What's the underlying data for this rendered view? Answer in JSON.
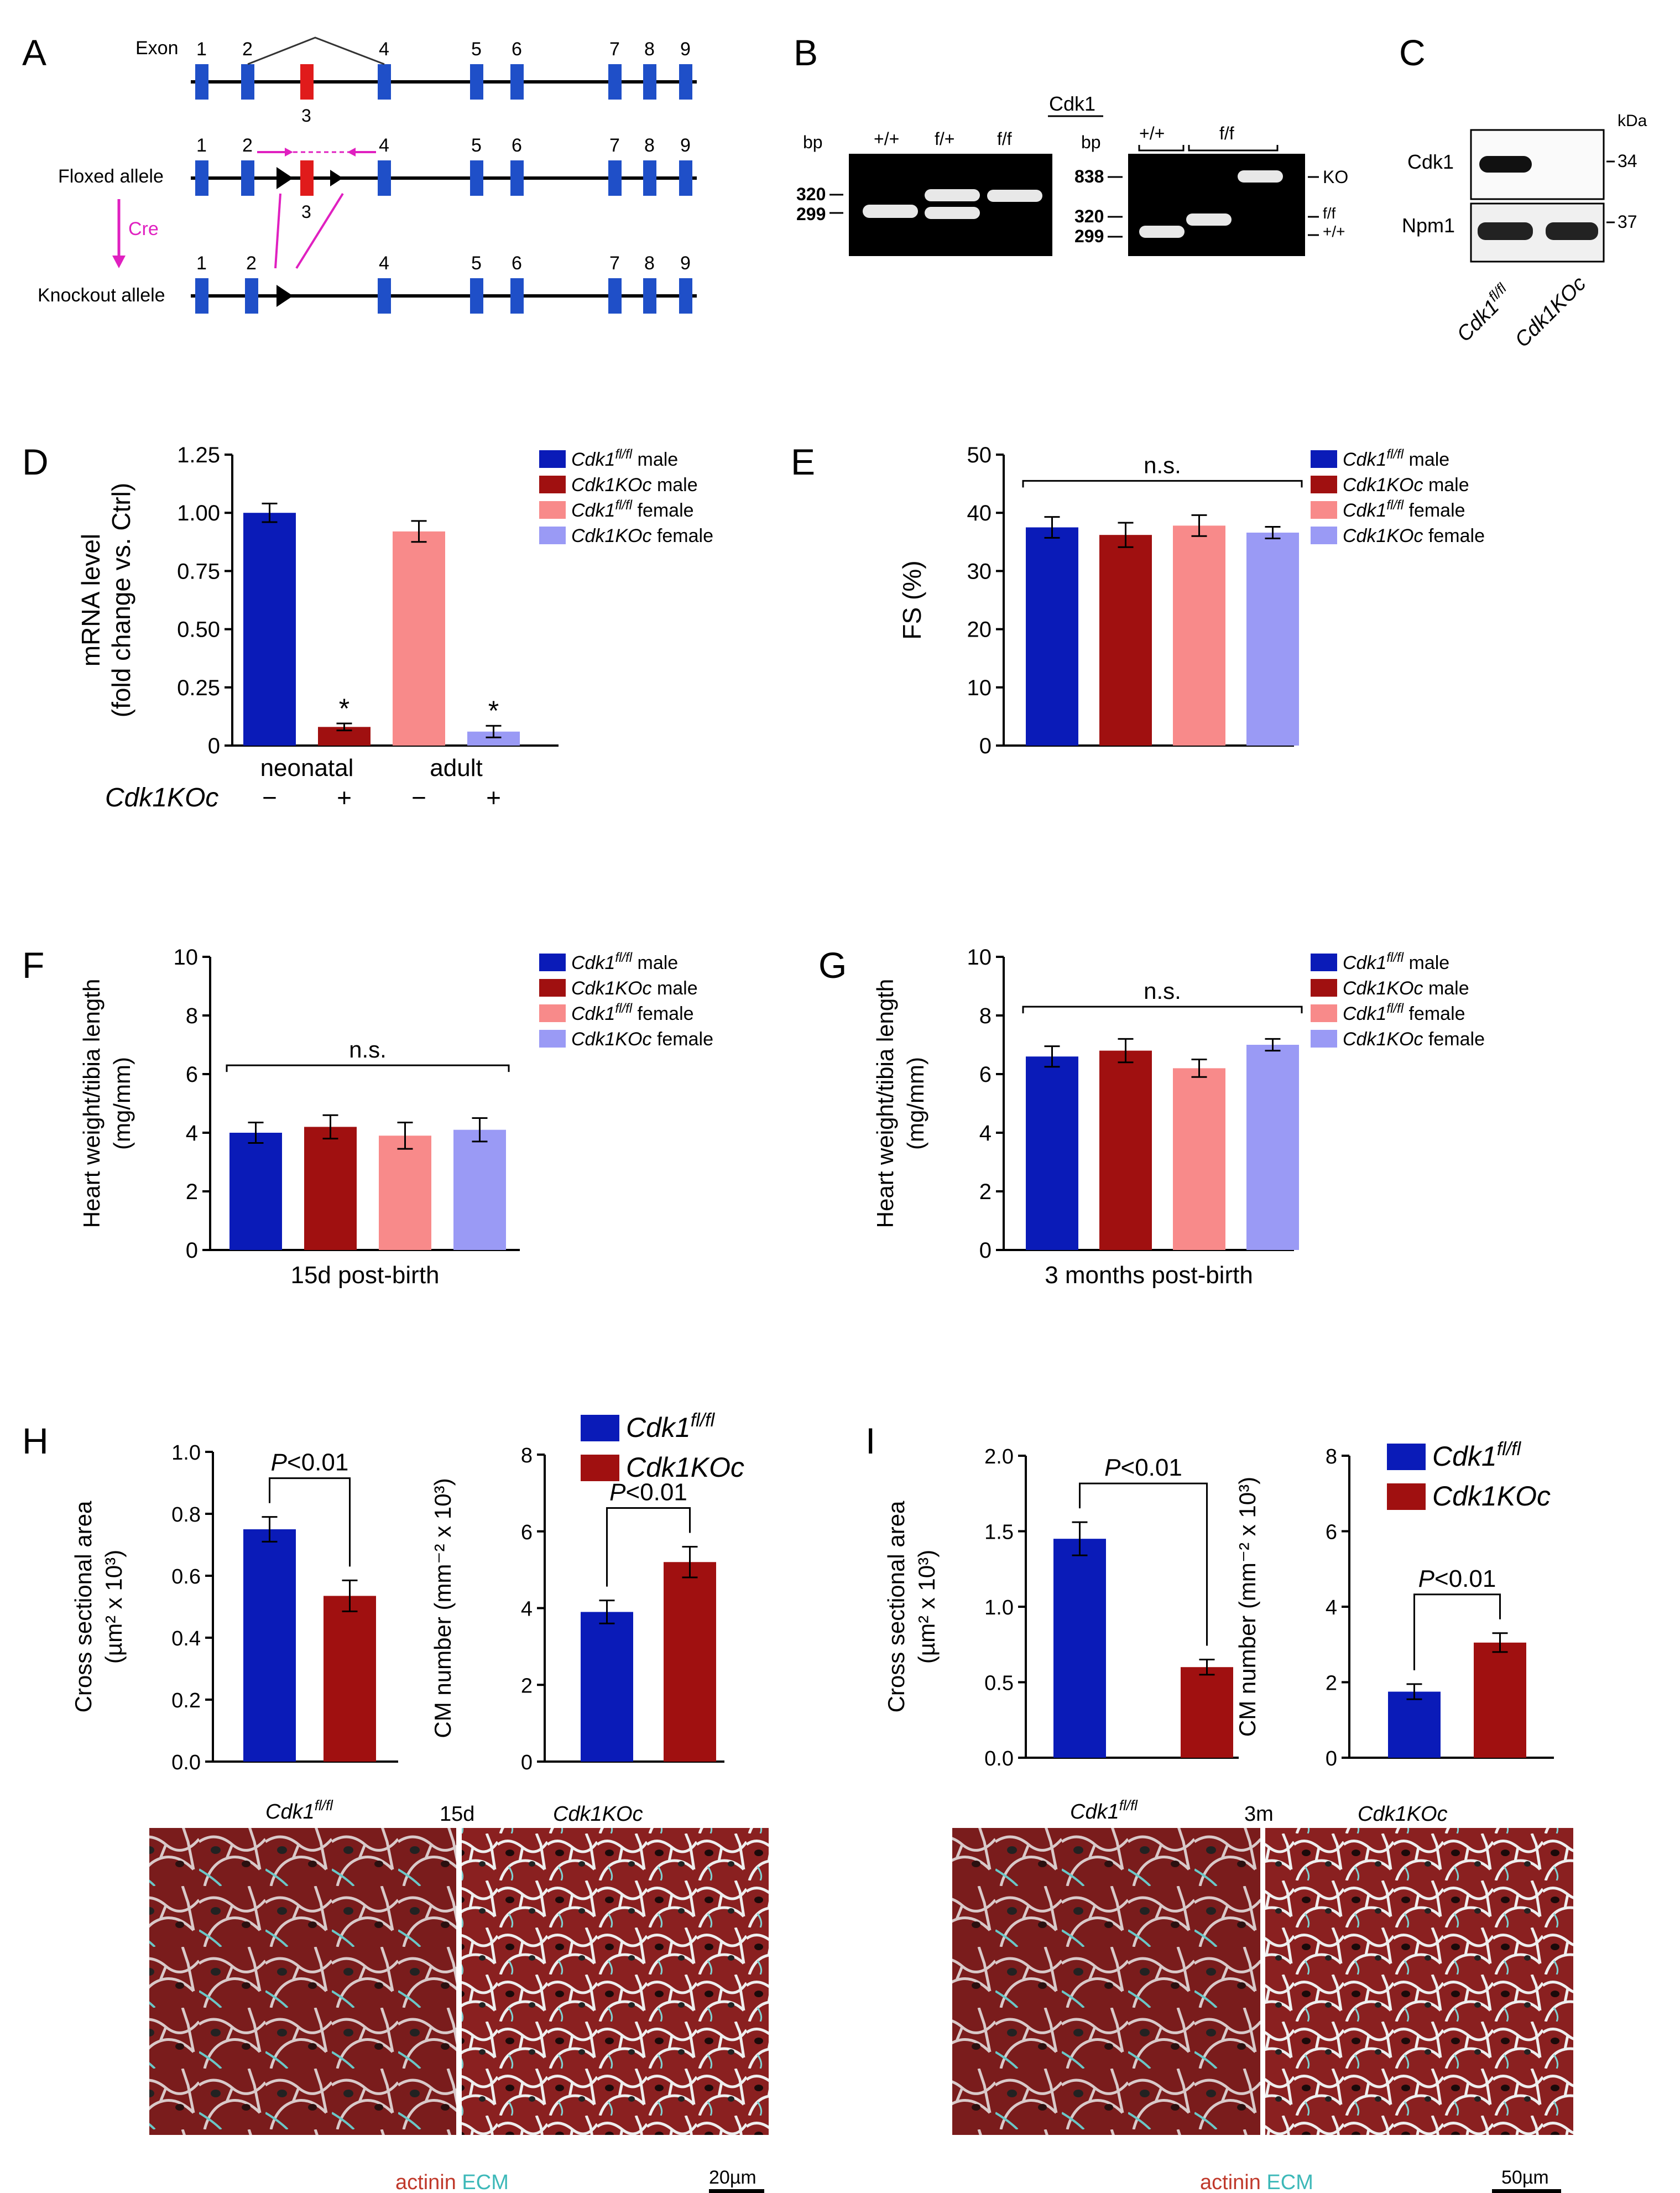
{
  "colors": {
    "wt_male": "#0a1bb8",
    "ko_male": "#a01010",
    "wt_female": "#f88a8a",
    "ko_female": "#9a9af5",
    "exon": "#1f4fc8",
    "exon3": "#e01b1b",
    "primer": "#e020c0",
    "actinin": "#c0392b",
    "ecm": "#3cb8b8"
  },
  "panelA": {
    "letter": "A",
    "exon_label": "Exon",
    "exon_numbers": [
      "1",
      "2",
      "4",
      "5",
      "6",
      "7",
      "8",
      "9"
    ],
    "exon3": "3",
    "floxed_label": "Floxed allele",
    "ko_label": "Knockout allele",
    "cre_label": "Cre"
  },
  "panelB": {
    "letter": "B",
    "left_gel": {
      "unit": "bp",
      "lanes": [
        "+/+",
        "f/+",
        "f/f"
      ],
      "sizes": [
        "320",
        "299"
      ]
    },
    "right_gel": {
      "title": "Cdk1",
      "unit": "bp",
      "groups": [
        "+/+",
        "f/f"
      ],
      "sizes": [
        "838",
        "320",
        "299"
      ],
      "bands": [
        "KO",
        "f/f",
        "+/+"
      ]
    }
  },
  "panelC": {
    "letter": "C",
    "unit": "kDa",
    "proteins": [
      "Cdk1",
      "Npm1"
    ],
    "sizes": [
      "34",
      "37"
    ],
    "lane_base": [
      "Cdk1",
      "Cdk1KOc"
    ],
    "lane_sup": [
      "fl/fl",
      ""
    ]
  },
  "legend4": {
    "items": [
      {
        "base": "Cdk1",
        "sup": "fl/fl",
        "suffix": " male",
        "color": "wt_male"
      },
      {
        "base": "Cdk1KOc",
        "sup": "",
        "suffix": " male",
        "color": "ko_male"
      },
      {
        "base": "Cdk1",
        "sup": "fl/fl",
        "suffix": " female",
        "color": "wt_female"
      },
      {
        "base": "Cdk1KOc",
        "sup": "",
        "suffix": " female",
        "color": "ko_female"
      }
    ]
  },
  "legend2": {
    "items": [
      {
        "base": "Cdk1",
        "sup": "fl/fl",
        "suffix": "",
        "color": "wt_male"
      },
      {
        "base": "Cdk1KOc",
        "sup": "",
        "suffix": "",
        "color": "ko_male"
      }
    ]
  },
  "chart_data": [
    {
      "panel": "D",
      "type": "bar",
      "ylabel1": "mRNA level",
      "ylabel2": "(fold change vs. Ctrl)",
      "ylim": [
        0,
        1.25
      ],
      "yticks": [
        "0",
        "0.25",
        "0.50",
        "0.75",
        "1.00",
        "1.25"
      ],
      "values": [
        1.0,
        0.08,
        0.92,
        0.06
      ],
      "errors": [
        0.04,
        0.015,
        0.045,
        0.025
      ],
      "colors": [
        "wt_male",
        "ko_male",
        "wt_female",
        "ko_female"
      ],
      "marks": [
        "",
        "*",
        "",
        "*"
      ],
      "groups": [
        "neonatal",
        "adult"
      ],
      "row_label": "Cdk1KOc",
      "row_signs": [
        "−",
        "+",
        "−",
        "+"
      ]
    },
    {
      "panel": "E",
      "type": "bar",
      "ylabel1": "FS (%)",
      "ylim": [
        0,
        50
      ],
      "yticks": [
        "0",
        "10",
        "20",
        "30",
        "40",
        "50"
      ],
      "values": [
        37.5,
        36.2,
        37.8,
        36.6
      ],
      "errors": [
        1.8,
        2.1,
        1.8,
        1.0
      ],
      "colors": [
        "wt_male",
        "ko_male",
        "wt_female",
        "ko_female"
      ],
      "sig": "n.s."
    },
    {
      "panel": "F",
      "type": "bar",
      "ylabel1": "Heart weight/tibia length",
      "ylabel2": "(mg/mm)",
      "ylim": [
        0,
        10
      ],
      "yticks": [
        "0",
        "2",
        "4",
        "6",
        "8",
        "10"
      ],
      "values": [
        4.0,
        4.2,
        3.9,
        4.1
      ],
      "errors": [
        0.35,
        0.4,
        0.45,
        0.4
      ],
      "colors": [
        "wt_male",
        "ko_male",
        "wt_female",
        "ko_female"
      ],
      "sig": "n.s.",
      "xlabel": "15d post-birth"
    },
    {
      "panel": "G",
      "type": "bar",
      "ylabel1": "Heart weight/tibia length",
      "ylabel2": "(mg/mm)",
      "ylim": [
        0,
        10
      ],
      "yticks": [
        "0",
        "2",
        "4",
        "6",
        "8",
        "10"
      ],
      "values": [
        6.6,
        6.8,
        6.2,
        7.0
      ],
      "errors": [
        0.35,
        0.4,
        0.3,
        0.2
      ],
      "colors": [
        "wt_male",
        "ko_male",
        "wt_female",
        "ko_female"
      ],
      "sig": "n.s.",
      "xlabel": "3 months post-birth"
    },
    {
      "panel": "H1",
      "type": "bar",
      "ylabel1": "Cross sectional area",
      "ylabel2": "(µm² x 10³)",
      "ylim": [
        0,
        1.0
      ],
      "yticks": [
        "0.0",
        "0.2",
        "0.4",
        "0.6",
        "0.8",
        "1.0"
      ],
      "values": [
        0.75,
        0.535
      ],
      "errors": [
        0.04,
        0.05
      ],
      "colors": [
        "wt_male",
        "ko_male"
      ],
      "sig": "P<0.01"
    },
    {
      "panel": "H2",
      "type": "bar",
      "ylabel1": "CM number (mm⁻² x 10³)",
      "ylim": [
        0,
        8
      ],
      "yticks": [
        "0",
        "2",
        "4",
        "6",
        "8"
      ],
      "values": [
        3.9,
        5.2
      ],
      "errors": [
        0.3,
        0.4
      ],
      "colors": [
        "wt_male",
        "ko_male"
      ],
      "sig": "P<0.01"
    },
    {
      "panel": "I1",
      "type": "bar",
      "ylabel1": "Cross sectional area",
      "ylabel2": "(µm² x 10³)",
      "ylim": [
        0,
        2.0
      ],
      "yticks": [
        "0.0",
        "0.5",
        "1.0",
        "1.5",
        "2.0"
      ],
      "values": [
        1.45,
        0.6
      ],
      "errors": [
        0.11,
        0.05
      ],
      "colors": [
        "wt_male",
        "ko_male"
      ],
      "sig": "P<0.01"
    },
    {
      "panel": "I2",
      "type": "bar",
      "ylabel1": "CM number (mm⁻² x 10³)",
      "ylim": [
        0,
        8
      ],
      "yticks": [
        "0",
        "2",
        "4",
        "6",
        "8"
      ],
      "values": [
        1.75,
        3.05
      ],
      "errors": [
        0.2,
        0.25
      ],
      "colors": [
        "wt_male",
        "ko_male"
      ],
      "sig": "P<0.01"
    }
  ],
  "panelH": {
    "letter": "H",
    "img_labels_base": [
      "Cdk1",
      "Cdk1KOc"
    ],
    "img_labels_sup": [
      "fl/fl",
      ""
    ],
    "time": "15d",
    "stain_actinin": "actinin",
    "stain_ecm": "ECM",
    "scale": "20µm"
  },
  "panelI": {
    "letter": "I",
    "img_labels_base": [
      "Cdk1",
      "Cdk1KOc"
    ],
    "img_labels_sup": [
      "fl/fl",
      ""
    ],
    "time": "3m",
    "stain_actinin": "actinin",
    "stain_ecm": "ECM",
    "scale": "50µm"
  },
  "letters": {
    "D": "D",
    "E": "E",
    "F": "F",
    "G": "G"
  }
}
